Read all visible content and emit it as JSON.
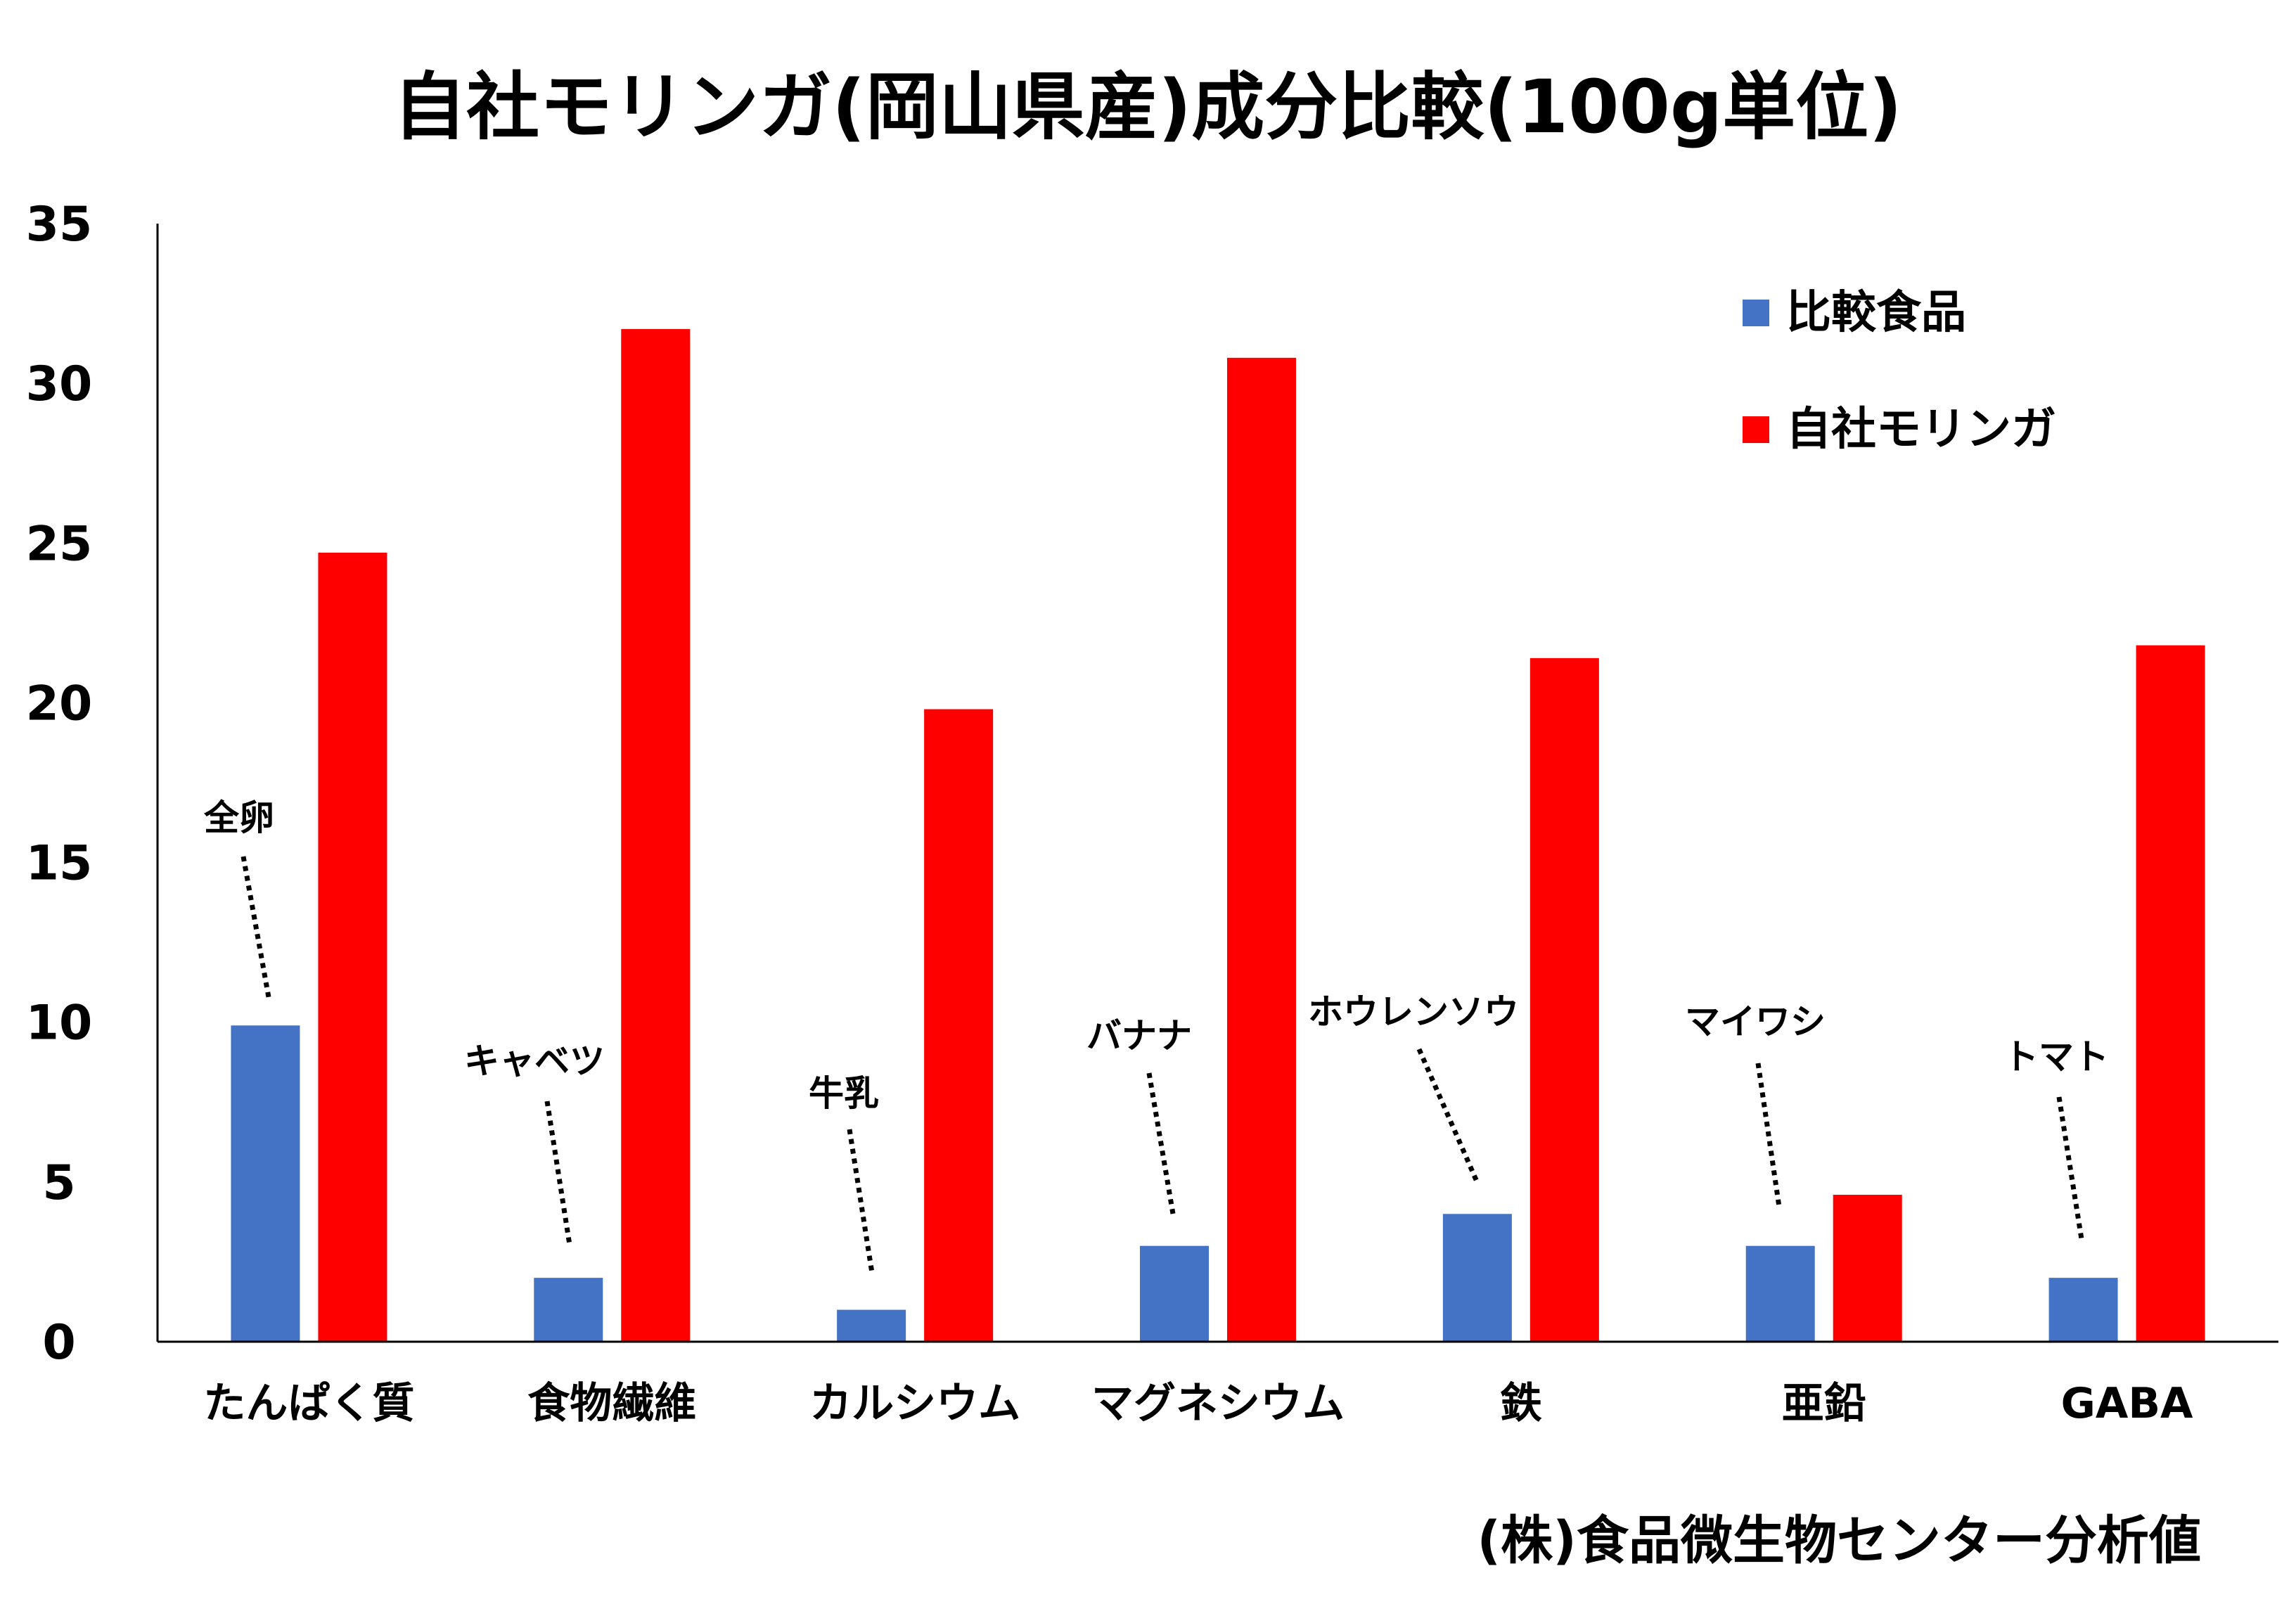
{
  "chart_data": {
    "type": "bar",
    "title": "自社モリンガ(岡山県産)成分比較(100g単位)",
    "categories": [
      "たんぱく質",
      "食物繊維",
      "カルシウム",
      "マグネシウム",
      "鉄",
      "亜鉛",
      "GABA"
    ],
    "series": [
      {
        "name": "比較食品",
        "color": "#4472C4",
        "values": [
          9.9,
          2.0,
          1.0,
          3.0,
          4.0,
          3.0,
          2.0
        ]
      },
      {
        "name": "自社モリンガ",
        "color": "#FF0000",
        "values": [
          24.7,
          31.7,
          19.8,
          30.8,
          21.4,
          4.6,
          21.8
        ]
      }
    ],
    "comparison_foods": [
      "全卵",
      "キャベツ",
      "牛乳",
      "バナナ",
      "ホウレンソウ",
      "マイワシ",
      "トマト"
    ],
    "ylim": [
      0,
      35
    ],
    "yticks": [
      0,
      5,
      10,
      15,
      20,
      25,
      30,
      35
    ],
    "grid": false,
    "legend_position": "top-right",
    "source_note": "(株)食品微生物センター分析値"
  }
}
